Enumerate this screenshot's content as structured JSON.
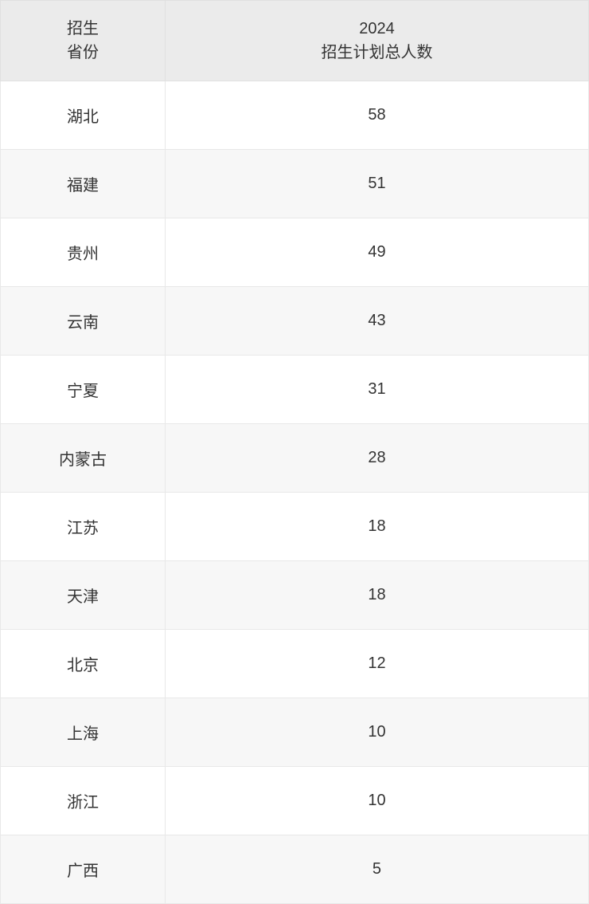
{
  "table": {
    "type": "table",
    "columns": [
      {
        "line1": "招生",
        "line2": "省份",
        "width": "28%",
        "alignment": "center"
      },
      {
        "line1": "2024",
        "line2": "招生计划总人数",
        "width": "72%",
        "alignment": "center"
      }
    ],
    "rows": [
      {
        "province": "湖北",
        "count": "58"
      },
      {
        "province": "福建",
        "count": "51"
      },
      {
        "province": "贵州",
        "count": "49"
      },
      {
        "province": "云南",
        "count": "43"
      },
      {
        "province": "宁夏",
        "count": "31"
      },
      {
        "province": "内蒙古",
        "count": "28"
      },
      {
        "province": "江苏",
        "count": "18"
      },
      {
        "province": "天津",
        "count": "18"
      },
      {
        "province": "北京",
        "count": "12"
      },
      {
        "province": "上海",
        "count": "10"
      },
      {
        "province": "浙江",
        "count": "10"
      },
      {
        "province": "广西",
        "count": "5"
      }
    ],
    "styling": {
      "header_background_color": "#ebebeb",
      "row_odd_background_color": "#ffffff",
      "row_even_background_color": "#f7f7f7",
      "border_color": "#e8e8e8",
      "text_color": "#333333",
      "font_size": 20,
      "header_font_weight": 400,
      "cell_padding_vertical": 28,
      "header_padding_vertical": 20
    }
  }
}
